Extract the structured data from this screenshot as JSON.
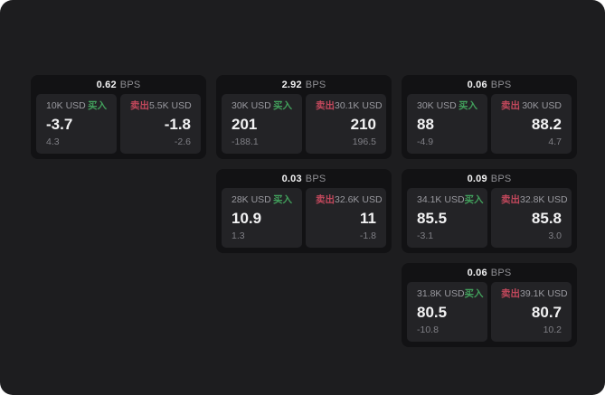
{
  "labels": {
    "bps_unit": "BPS",
    "buy": "买入",
    "sell": "卖出"
  },
  "colors": {
    "surface": "#1d1d1f",
    "card": "#121214",
    "panel": "#232326",
    "text": "#f2f2f3",
    "muted": "#9a9aa0",
    "muted2": "#7f7f85",
    "bps_label": "#8e8e93",
    "buy": "#42a05c",
    "sell": "#c2485c"
  },
  "cards": [
    {
      "row": 1,
      "col": 1,
      "bps": "0.62",
      "buy": {
        "amount": "10K USD",
        "value": "-3.7",
        "sub": "4.3"
      },
      "sell": {
        "amount": "5.5K USD",
        "value": "-1.8",
        "sub": "-2.6"
      }
    },
    {
      "row": 1,
      "col": 2,
      "bps": "2.92",
      "buy": {
        "amount": "30K USD",
        "value": "201",
        "sub": "-188.1"
      },
      "sell": {
        "amount": "30.1K USD",
        "value": "210",
        "sub": "196.5"
      }
    },
    {
      "row": 1,
      "col": 3,
      "bps": "0.06",
      "buy": {
        "amount": "30K USD",
        "value": "88",
        "sub": "-4.9"
      },
      "sell": {
        "amount": "30K USD",
        "value": "88.2",
        "sub": "4.7"
      }
    },
    {
      "row": 2,
      "col": 2,
      "bps": "0.03",
      "buy": {
        "amount": "28K USD",
        "value": "10.9",
        "sub": "1.3"
      },
      "sell": {
        "amount": "32.6K USD",
        "value": "11",
        "sub": "-1.8"
      }
    },
    {
      "row": 2,
      "col": 3,
      "bps": "0.09",
      "buy": {
        "amount": "34.1K USD",
        "value": "85.5",
        "sub": "-3.1"
      },
      "sell": {
        "amount": "32.8K USD",
        "value": "85.8",
        "sub": "3.0"
      }
    },
    {
      "row": 3,
      "col": 3,
      "bps": "0.06",
      "buy": {
        "amount": "31.8K USD",
        "value": "80.5",
        "sub": "-10.8"
      },
      "sell": {
        "amount": "39.1K USD",
        "value": "80.7",
        "sub": "10.2"
      }
    }
  ]
}
